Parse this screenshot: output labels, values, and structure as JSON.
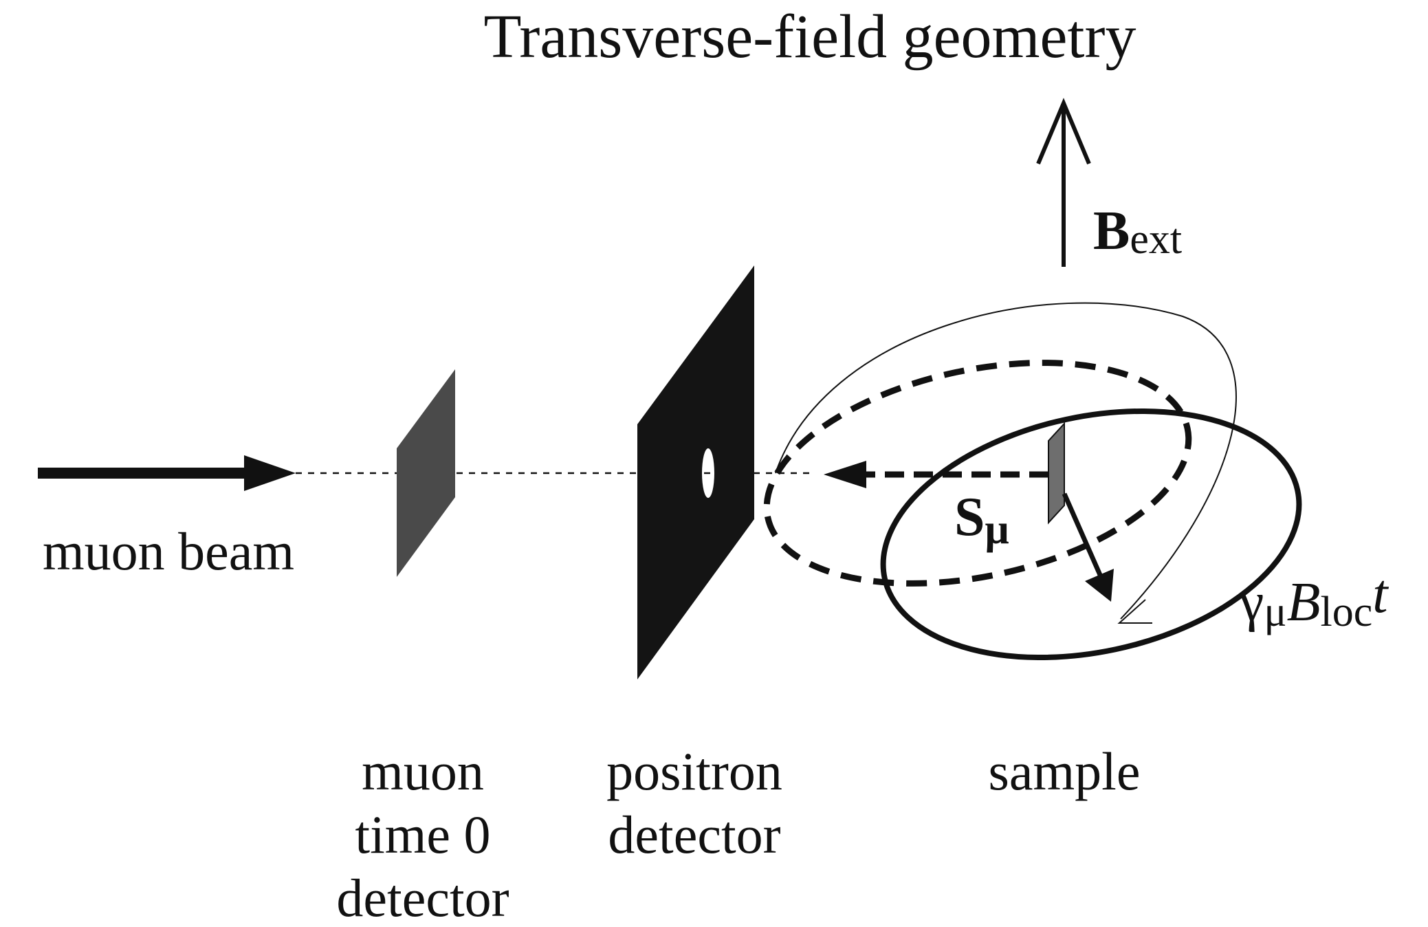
{
  "title": "Transverse-field geometry",
  "labels": {
    "beam": "muon beam",
    "t0_line1": "muon",
    "t0_line2": "time 0",
    "t0_line3": "detector",
    "pos_line1": "positron",
    "pos_line2": "detector",
    "sample": "sample"
  },
  "symbols": {
    "bext_main": "B",
    "bext_sub": "ext",
    "spin_main": "S",
    "spin_sub": "μ",
    "prec_gamma": "γ",
    "prec_gamma_sub": "μ",
    "prec_B": "B",
    "prec_B_sub": "loc",
    "prec_t": "t"
  },
  "colors": {
    "ink": "#111111",
    "detector_gray": "#4a4a4a",
    "detector_black": "#141414",
    "sample_gray": "#6e6e6e"
  }
}
